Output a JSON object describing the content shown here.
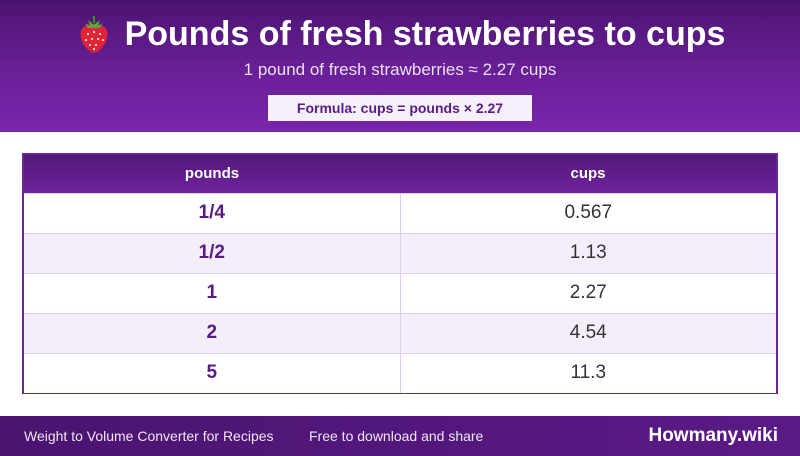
{
  "header": {
    "icon": "strawberry-icon",
    "title": "Pounds of fresh strawberries to cups",
    "subtitle": "1 pound of fresh strawberries ≈ 2.27 cups",
    "formula": "Formula: cups = pounds × 2.27"
  },
  "table": {
    "columns": [
      "pounds",
      "cups"
    ],
    "rows": [
      {
        "pounds": "1/4",
        "cups": "0.567"
      },
      {
        "pounds": "1/2",
        "cups": "1.13"
      },
      {
        "pounds": "1",
        "cups": "2.27"
      },
      {
        "pounds": "2",
        "cups": "4.54"
      },
      {
        "pounds": "5",
        "cups": "11.3"
      }
    ]
  },
  "footer": {
    "left_text": "Weight to Volume Converter for Recipes",
    "mid_text": "Free to download and share",
    "brand": "Howmany.wiki"
  },
  "colors": {
    "header_purple": "#5a1a86",
    "accent_purple": "#6a2596",
    "strawberry_red": "#e0223a",
    "leaf_green": "#4caf3a"
  }
}
